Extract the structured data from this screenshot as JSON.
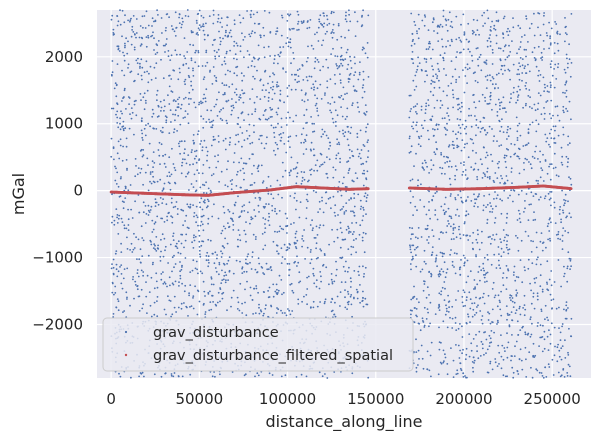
{
  "chart_data": {
    "type": "scatter",
    "title": "",
    "xlabel": "distance_along_line",
    "ylabel": "mGal",
    "xlim": [
      -8000,
      272000
    ],
    "ylim": [
      -2800,
      2700
    ],
    "xticks": [
      0,
      50000,
      100000,
      150000,
      200000,
      250000
    ],
    "xtick_labels": [
      "0",
      "50000",
      "100000",
      "150000",
      "200000",
      "250000"
    ],
    "yticks": [
      -2000,
      -1000,
      0,
      1000,
      2000
    ],
    "ytick_labels": [
      "−2000",
      "−1000",
      "0",
      "1000",
      "2000"
    ],
    "grid": true,
    "legend_position": "lower-left",
    "colors": {
      "background": "#eaeaf2",
      "grid": "#ffffff",
      "scatter": "#4c72b0",
      "filtered": "#c44e52"
    },
    "segments": [
      {
        "x_start": 0,
        "x_end": 146000
      },
      {
        "x_start": 169000,
        "x_end": 261000
      }
    ],
    "series": [
      {
        "name": "grav_disturbance",
        "kind": "scatter",
        "description_of_distribution": "dense random points, roughly uniform between -2800 and 2700 mGal across each segment"
      },
      {
        "name": "grav_disturbance_filtered_spatial",
        "kind": "line",
        "x": [
          0,
          20000,
          40000,
          55000,
          70000,
          90000,
          105000,
          120000,
          135000,
          146000,
          169000,
          190000,
          210000,
          230000,
          245000,
          261000
        ],
        "y": [
          -20,
          -40,
          -60,
          -70,
          -30,
          10,
          60,
          40,
          20,
          30,
          40,
          20,
          30,
          50,
          70,
          30
        ]
      }
    ]
  }
}
